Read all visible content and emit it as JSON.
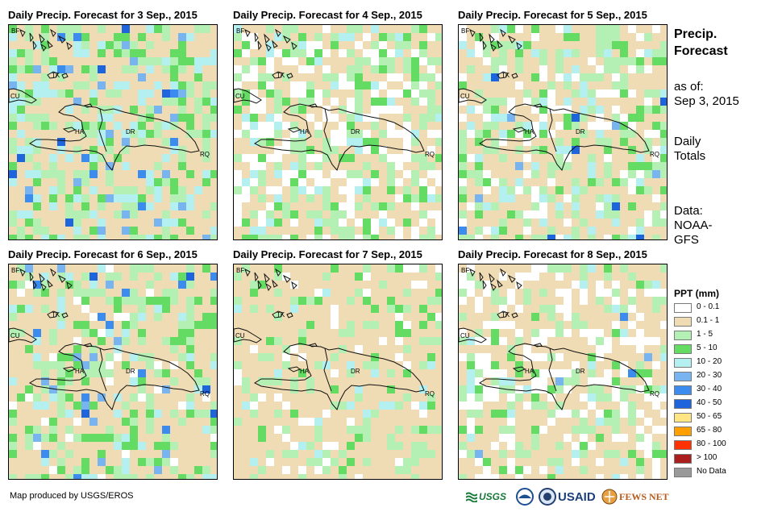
{
  "panels": [
    {
      "title": "Daily Precip. Forecast for 3 Sep., 2015",
      "seed": 3,
      "dens": [
        0.55,
        0.35,
        0.12,
        0.05
      ]
    },
    {
      "title": "Daily Precip. Forecast for 4 Sep., 2015",
      "seed": 4,
      "dens": [
        0.4,
        0.3,
        0.06,
        0.0
      ]
    },
    {
      "title": "Daily Precip. Forecast for 5 Sep., 2015",
      "seed": 5,
      "dens": [
        0.45,
        0.3,
        0.08,
        0.02
      ]
    },
    {
      "title": "Daily Precip. Forecast for 6 Sep., 2015",
      "seed": 6,
      "dens": [
        0.55,
        0.3,
        0.07,
        0.03
      ]
    },
    {
      "title": "Daily Precip. Forecast for 7 Sep., 2015",
      "seed": 7,
      "dens": [
        0.7,
        0.2,
        0.02,
        0.0
      ]
    },
    {
      "title": "Daily Precip. Forecast for 8 Sep., 2015",
      "seed": 8,
      "dens": [
        0.5,
        0.22,
        0.03,
        0.01
      ]
    }
  ],
  "map_labels": {
    "bf": "BF",
    "tk": "TK",
    "cu": "CU",
    "ha": "HA",
    "dr": "DR",
    "rq": "RQ"
  },
  "side": {
    "title_line1": "Precip.",
    "title_line2": "Forecast",
    "asof_label": "as of:",
    "asof_date": "Sep 3, 2015",
    "daily_line1": "Daily",
    "daily_line2": "Totals",
    "data_label": "Data:",
    "data_src1": "NOAA-",
    "data_src2": "GFS"
  },
  "legend": {
    "title": "PPT (mm)",
    "items": [
      {
        "label": "0 - 0.1",
        "color": "#ffffff"
      },
      {
        "label": "0.1 - 1",
        "color": "#f0dcb4"
      },
      {
        "label": "1 - 5",
        "color": "#b4f0b4"
      },
      {
        "label": "5 - 10",
        "color": "#64dc64"
      },
      {
        "label": "10 - 20",
        "color": "#b4f0f0"
      },
      {
        "label": "20 - 30",
        "color": "#78b4f0"
      },
      {
        "label": "30 - 40",
        "color": "#3c8cf0"
      },
      {
        "label": "40 - 50",
        "color": "#1e64dc"
      },
      {
        "label": "50 - 65",
        "color": "#ffe682"
      },
      {
        "label": "65 - 80",
        "color": "#ffa000"
      },
      {
        "label": "80 - 100",
        "color": "#ff3200"
      },
      {
        "label": "> 100",
        "color": "#aa1e1e"
      },
      {
        "label": "No Data",
        "color": "#9a9a9a"
      }
    ]
  },
  "footer": "Map produced by USGS/EROS",
  "logos": {
    "usgs": "USGS",
    "usaid": "USAID",
    "fewsnet": "FEWS NET"
  }
}
